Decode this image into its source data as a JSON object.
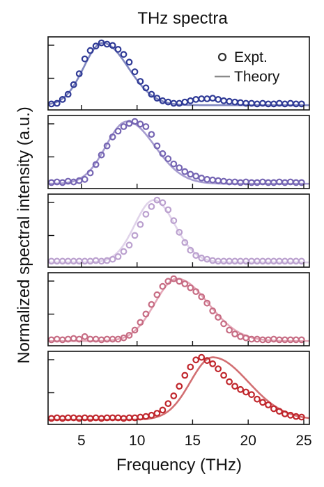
{
  "chart_data": {
    "type": "line",
    "title": "THz spectra",
    "xlabel": "Frequency (THz)",
    "ylabel": "Normalized spectral intensity (a.u.)",
    "xlim": [
      2,
      25.5
    ],
    "ylim": [
      0,
      1.05
    ],
    "xticks": [
      5,
      10,
      15,
      20,
      25
    ],
    "xtick_labels": [
      "5",
      "10",
      "15",
      "20",
      "25"
    ],
    "grid": false,
    "legend": {
      "position": "top-right",
      "entries": [
        {
          "label": "Expt.",
          "marker": "open-circle"
        },
        {
          "label": "Theory",
          "marker": "line"
        }
      ]
    },
    "panels": [
      {
        "color": "#2f3a96",
        "theory_color": "#7f86bf",
        "theory": {
          "peak": 6.9,
          "width_left": 1.7,
          "width_right": 2.3,
          "baseline": 0.03
        },
        "expt_x": [
          2.3,
          2.8,
          3.3,
          3.8,
          4.3,
          4.8,
          5.3,
          5.8,
          6.3,
          6.8,
          7.3,
          7.8,
          8.3,
          8.8,
          9.3,
          9.8,
          10.3,
          10.8,
          11.3,
          11.8,
          12.3,
          12.8,
          13.3,
          13.8,
          14.3,
          14.8,
          15.3,
          15.8,
          16.3,
          16.8,
          17.3,
          17.8,
          18.3,
          18.8,
          19.3,
          19.8,
          20.3,
          20.8,
          21.3,
          21.8,
          22.3,
          22.8,
          23.3,
          23.8,
          24.3,
          24.8
        ],
        "expt_y": [
          0.05,
          0.06,
          0.12,
          0.2,
          0.35,
          0.52,
          0.75,
          0.88,
          0.95,
          1.0,
          0.98,
          0.96,
          0.9,
          0.82,
          0.7,
          0.55,
          0.4,
          0.3,
          0.2,
          0.14,
          0.1,
          0.08,
          0.06,
          0.06,
          0.08,
          0.1,
          0.12,
          0.13,
          0.13,
          0.14,
          0.12,
          0.1,
          0.09,
          0.08,
          0.07,
          0.06,
          0.06,
          0.05,
          0.06,
          0.05,
          0.05,
          0.06,
          0.05,
          0.06,
          0.05,
          0.05
        ]
      },
      {
        "color": "#7565b3",
        "theory_color": "#a79dd0",
        "theory": {
          "peak": 9.1,
          "width_left": 1.9,
          "width_right": 2.5,
          "baseline": 0.03
        },
        "expt_x": [
          2.3,
          2.8,
          3.3,
          3.8,
          4.3,
          4.8,
          5.3,
          5.8,
          6.3,
          6.8,
          7.3,
          7.8,
          8.3,
          8.8,
          9.3,
          9.8,
          10.3,
          10.8,
          11.3,
          11.8,
          12.3,
          12.8,
          13.3,
          13.8,
          14.3,
          14.8,
          15.3,
          15.8,
          16.3,
          16.8,
          17.3,
          17.8,
          18.3,
          18.8,
          19.3,
          19.8,
          20.3,
          20.8,
          21.3,
          21.8,
          22.3,
          22.8,
          23.3,
          23.8,
          24.3,
          24.8
        ],
        "expt_y": [
          0.05,
          0.06,
          0.05,
          0.07,
          0.06,
          0.08,
          0.1,
          0.2,
          0.33,
          0.48,
          0.62,
          0.76,
          0.85,
          0.92,
          0.97,
          1.0,
          0.96,
          0.92,
          0.8,
          0.62,
          0.5,
          0.42,
          0.34,
          0.28,
          0.22,
          0.18,
          0.15,
          0.12,
          0.1,
          0.09,
          0.08,
          0.07,
          0.06,
          0.06,
          0.05,
          0.06,
          0.05,
          0.05,
          0.06,
          0.05,
          0.05,
          0.06,
          0.05,
          0.06,
          0.05,
          0.05
        ]
      },
      {
        "color": "#bba1cf",
        "theory_color": "#e0d3ea",
        "theory": {
          "peak": 11.5,
          "width_left": 1.7,
          "width_right": 1.9,
          "baseline": 0.03
        },
        "expt_x": [
          2.3,
          2.8,
          3.3,
          3.8,
          4.3,
          4.8,
          5.3,
          5.8,
          6.3,
          6.8,
          7.3,
          7.8,
          8.3,
          8.8,
          9.3,
          9.8,
          10.3,
          10.8,
          11.3,
          11.8,
          12.3,
          12.8,
          13.3,
          13.8,
          14.3,
          14.8,
          15.3,
          15.8,
          16.3,
          16.8,
          17.3,
          17.8,
          18.3,
          18.8,
          19.3,
          19.8,
          20.3,
          20.8,
          21.3,
          21.8,
          22.3,
          22.8,
          23.3,
          23.8,
          24.3,
          24.8
        ],
        "expt_y": [
          0.05,
          0.05,
          0.05,
          0.05,
          0.05,
          0.05,
          0.05,
          0.05,
          0.06,
          0.05,
          0.06,
          0.08,
          0.12,
          0.2,
          0.3,
          0.45,
          0.62,
          0.78,
          0.9,
          1.0,
          0.96,
          0.85,
          0.68,
          0.5,
          0.34,
          0.22,
          0.14,
          0.1,
          0.08,
          0.06,
          0.05,
          0.05,
          0.05,
          0.05,
          0.05,
          0.05,
          0.05,
          0.05,
          0.05,
          0.05,
          0.05,
          0.05,
          0.05,
          0.05,
          0.05,
          0.05
        ]
      },
      {
        "color": "#c76d84",
        "theory_color": "#e5a8b8",
        "theory": {
          "peak": 13.6,
          "width_left": 2.0,
          "width_right": 2.8,
          "baseline": 0.03
        },
        "expt_x": [
          2.3,
          2.8,
          3.3,
          3.8,
          4.3,
          4.8,
          5.3,
          5.8,
          6.3,
          6.8,
          7.3,
          7.8,
          8.3,
          8.8,
          9.3,
          9.8,
          10.3,
          10.8,
          11.3,
          11.8,
          12.3,
          12.8,
          13.3,
          13.8,
          14.3,
          14.8,
          15.3,
          15.8,
          16.3,
          16.8,
          17.3,
          17.8,
          18.3,
          18.8,
          19.3,
          19.8,
          20.3,
          20.8,
          21.3,
          21.8,
          22.3,
          22.8,
          23.3,
          23.8,
          24.3,
          24.8
        ],
        "expt_y": [
          0.05,
          0.06,
          0.05,
          0.06,
          0.07,
          0.06,
          0.1,
          0.06,
          0.06,
          0.05,
          0.06,
          0.06,
          0.06,
          0.08,
          0.12,
          0.2,
          0.32,
          0.45,
          0.6,
          0.75,
          0.88,
          0.96,
          1.0,
          0.96,
          0.92,
          0.86,
          0.8,
          0.72,
          0.62,
          0.5,
          0.4,
          0.3,
          0.2,
          0.14,
          0.1,
          0.08,
          0.06,
          0.06,
          0.05,
          0.05,
          0.06,
          0.05,
          0.05,
          0.05,
          0.05,
          0.05
        ]
      },
      {
        "color": "#c0262c",
        "theory_color": "#d26f72",
        "theory": {
          "peak": 16.8,
          "width_left": 2.0,
          "width_right": 3.2,
          "baseline": 0.03
        },
        "expt_x": [
          2.3,
          2.8,
          3.3,
          3.8,
          4.3,
          4.8,
          5.3,
          5.8,
          6.3,
          6.8,
          7.3,
          7.8,
          8.3,
          8.8,
          9.3,
          9.8,
          10.3,
          10.8,
          11.3,
          11.8,
          12.3,
          12.8,
          13.3,
          13.8,
          14.3,
          14.8,
          15.3,
          15.8,
          16.3,
          16.8,
          17.3,
          17.8,
          18.3,
          18.8,
          19.3,
          19.8,
          20.3,
          20.8,
          21.3,
          21.8,
          22.3,
          22.8,
          23.3,
          23.8,
          24.3,
          24.8
        ],
        "expt_y": [
          0.05,
          0.06,
          0.05,
          0.06,
          0.06,
          0.05,
          0.06,
          0.05,
          0.06,
          0.05,
          0.06,
          0.06,
          0.06,
          0.05,
          0.06,
          0.06,
          0.07,
          0.08,
          0.1,
          0.13,
          0.18,
          0.28,
          0.4,
          0.55,
          0.72,
          0.85,
          0.96,
          1.0,
          0.95,
          0.9,
          0.82,
          0.72,
          0.62,
          0.55,
          0.5,
          0.46,
          0.42,
          0.35,
          0.3,
          0.26,
          0.2,
          0.16,
          0.12,
          0.1,
          0.08,
          0.07
        ]
      }
    ]
  }
}
